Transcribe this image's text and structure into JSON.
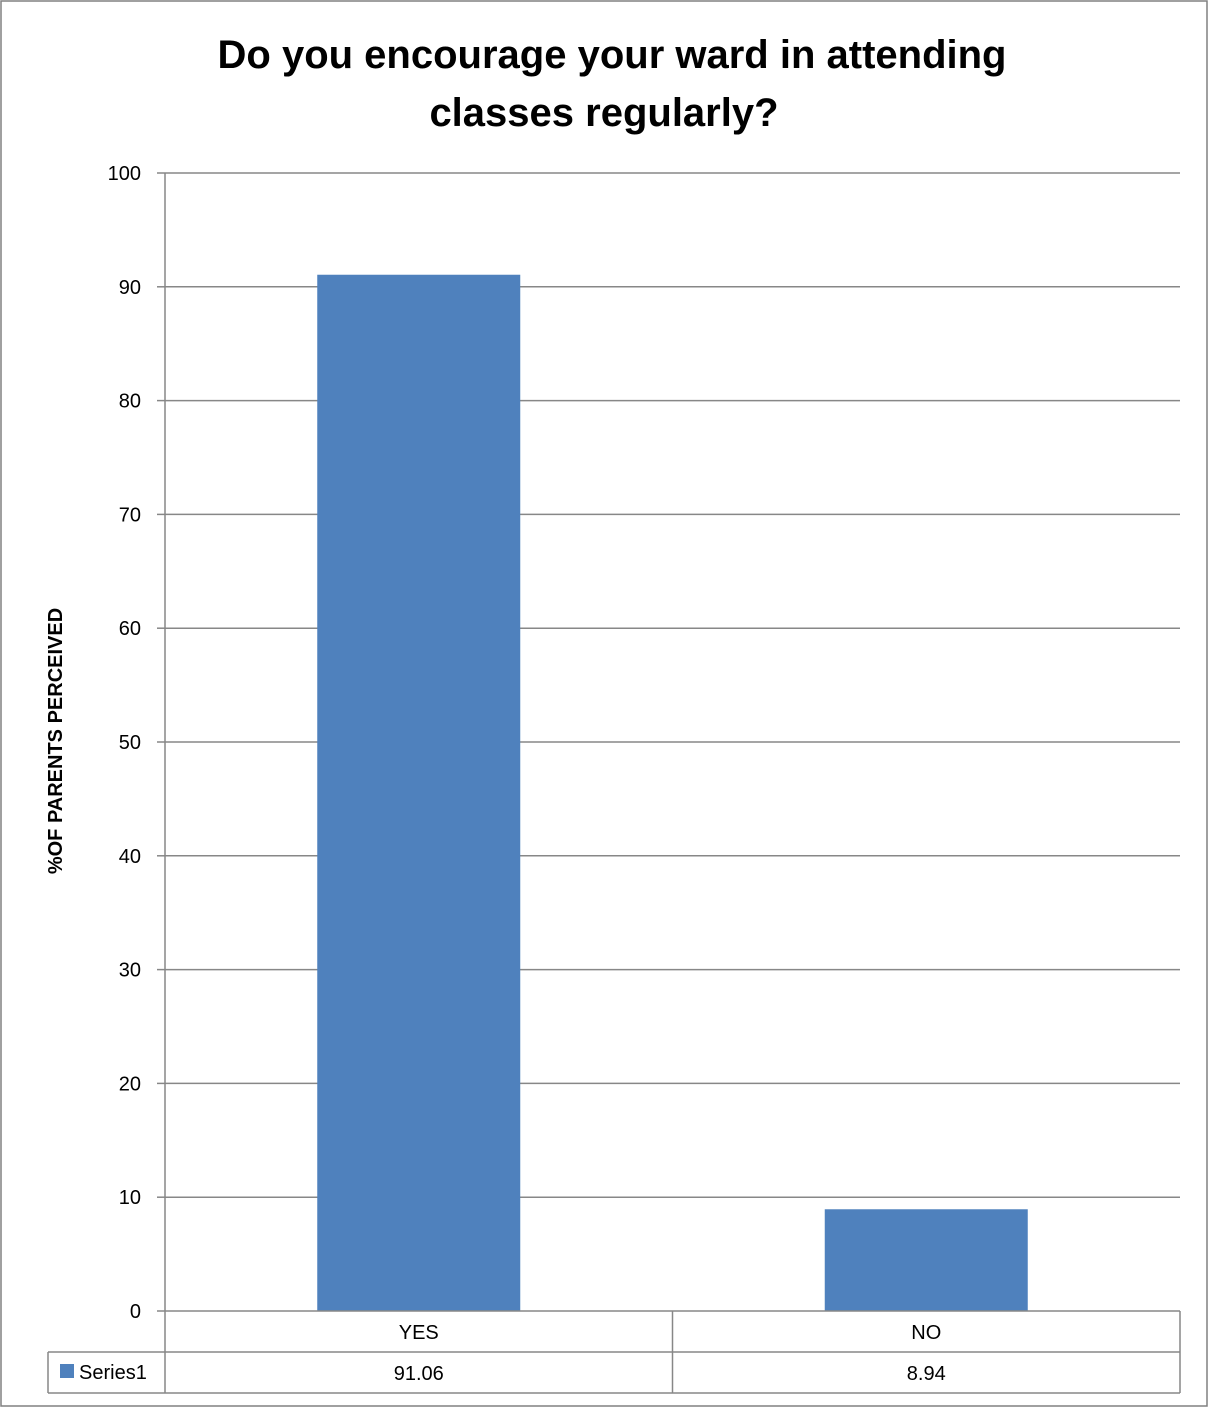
{
  "chart_data": {
    "type": "bar",
    "title_lines": [
      "Do you encourage your ward in attending",
      "classes regularly?"
    ],
    "ylabel": "%OF PARENTS PERCEIVED",
    "xlabel": "",
    "categories": [
      "YES",
      "NO"
    ],
    "ylim": [
      0,
      100
    ],
    "yticks": [
      0,
      10,
      20,
      30,
      40,
      50,
      60,
      70,
      80,
      90,
      100
    ],
    "grid": true,
    "legend_placement": "data-table-left",
    "series": [
      {
        "name": "Series1",
        "values": [
          91.06,
          8.94
        ],
        "value_labels": [
          "91.06",
          "8.94"
        ],
        "color": "#4f81bd"
      }
    ]
  },
  "colors": {
    "gridline": "#878787",
    "axis": "#878787",
    "frame": "#808080",
    "text": "#000000"
  }
}
